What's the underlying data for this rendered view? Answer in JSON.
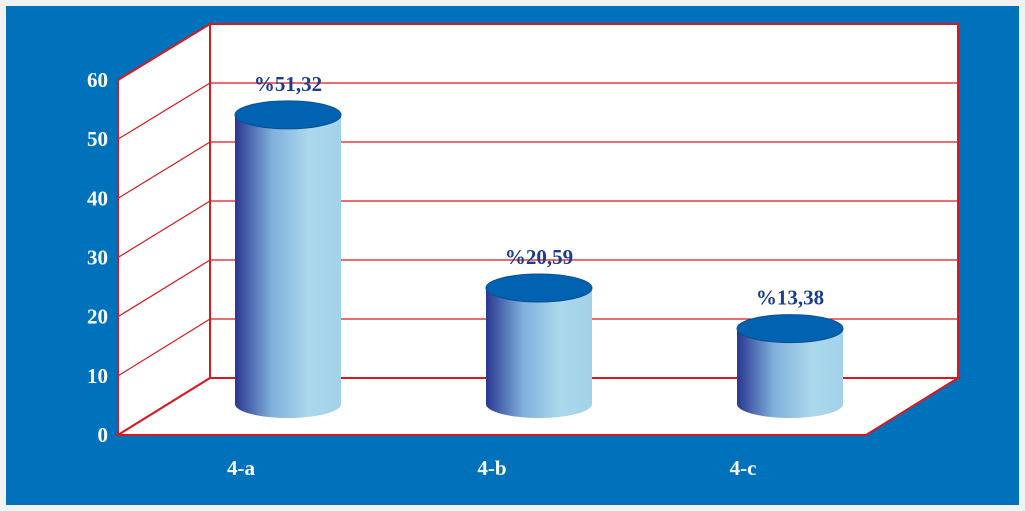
{
  "chart_data": {
    "type": "bar",
    "style": "3d-cylinder",
    "categories": [
      "4-a",
      "4-b",
      "4-c"
    ],
    "values": [
      51.32,
      20.59,
      13.38
    ],
    "data_labels": [
      "%51,32",
      "%20,59",
      "%13,38"
    ],
    "yticks": [
      "0",
      "10",
      "20",
      "30",
      "40",
      "50",
      "60"
    ],
    "ylim": [
      0,
      60
    ],
    "grid": true,
    "colors": {
      "background": "#0072bc",
      "plot_wall": "#ffffff",
      "gridlines": "#d7191f",
      "bar_dark": "#2f3f97",
      "bar_light": "#a9d6ea",
      "bar_top": "#0062b0",
      "label_text": "#1a3d8f",
      "axis_text": "#ffffff"
    }
  }
}
